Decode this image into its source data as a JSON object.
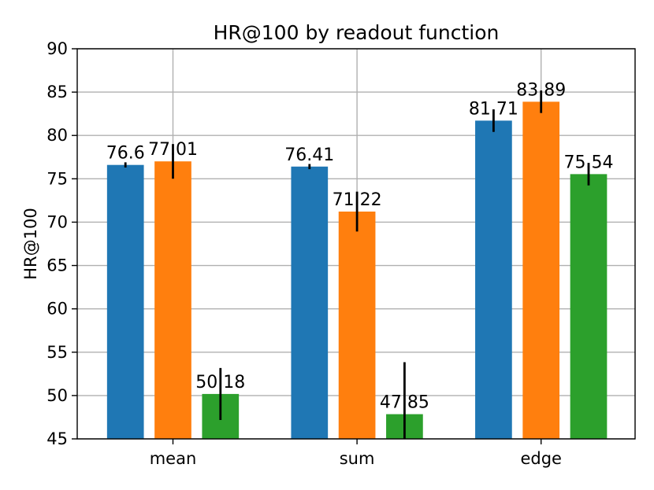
{
  "chart_data": {
    "type": "bar",
    "title": "HR@100 by readout function",
    "xlabel": "",
    "ylabel": "HR@100",
    "categories": [
      "mean",
      "sum",
      "edge"
    ],
    "ylim": [
      45,
      90
    ],
    "yticks": [
      45,
      50,
      55,
      60,
      65,
      70,
      75,
      80,
      85,
      90
    ],
    "grid": true,
    "legend": "none",
    "series": [
      {
        "color": "#1f77b4",
        "values": [
          76.6,
          76.41,
          81.71
        ],
        "errors": [
          0.3,
          0.3,
          1.3
        ],
        "labels": [
          "76.6",
          "76.41",
          "81.71"
        ]
      },
      {
        "color": "#ff7f0e",
        "values": [
          77.01,
          71.22,
          83.89
        ],
        "errors": [
          2.0,
          2.3,
          1.3
        ],
        "labels": [
          "77.01",
          "71.22",
          "83.89"
        ]
      },
      {
        "color": "#2ca02c",
        "values": [
          50.18,
          47.85,
          75.54
        ],
        "errors": [
          3.0,
          6.0,
          1.3
        ],
        "labels": [
          "50.18",
          "47.85",
          "75.54"
        ]
      }
    ]
  }
}
